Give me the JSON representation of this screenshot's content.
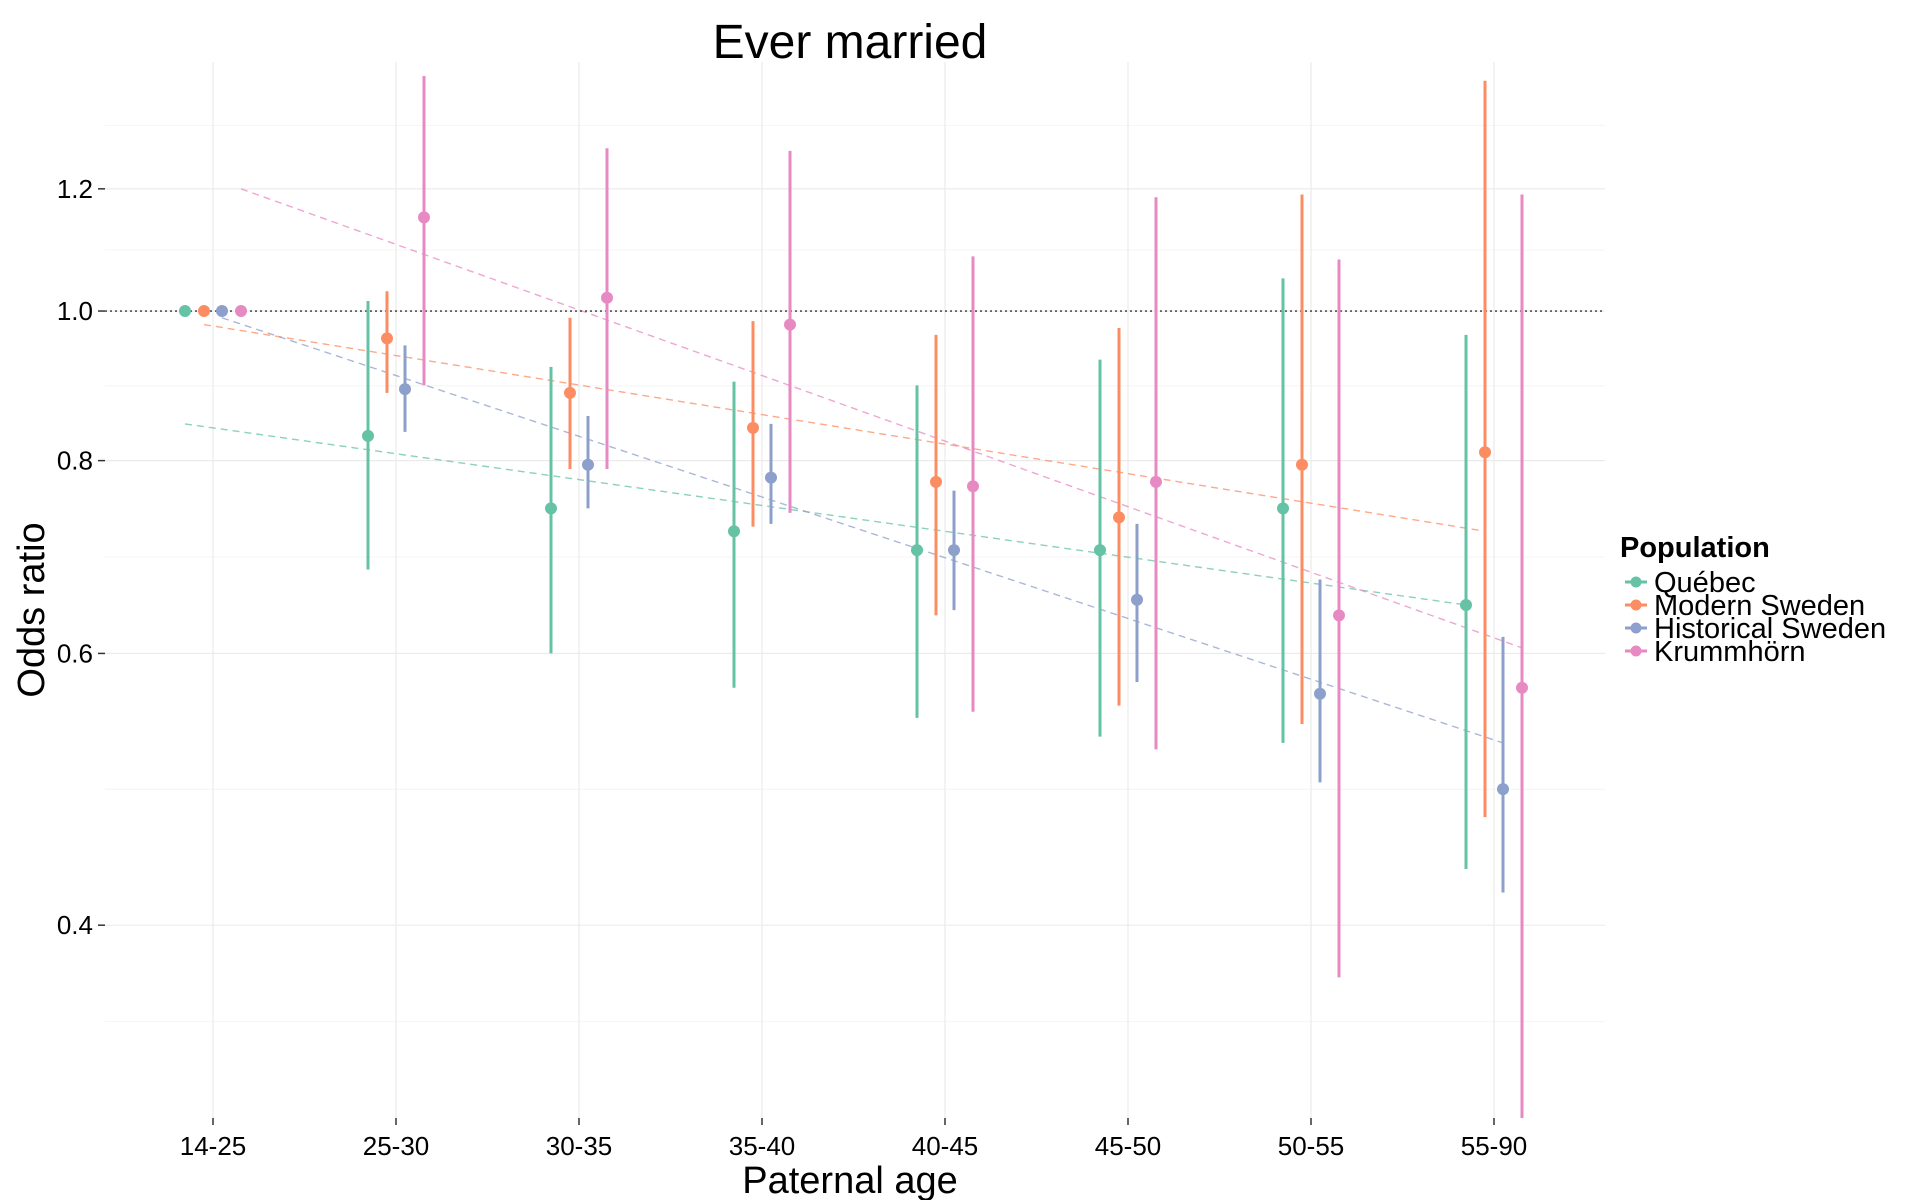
{
  "chart_data": {
    "type": "scatter",
    "title": "Ever married",
    "xlabel": "Paternal age",
    "ylabel": "Odds ratio",
    "y_scale": "log",
    "ylim": [
      0.3,
      1.45
    ],
    "y_ticks": [
      0.4,
      0.6,
      0.8,
      1.0,
      1.2
    ],
    "y_tick_labels": [
      "0.4",
      "0.6",
      "0.8",
      "1.0",
      "1.2"
    ],
    "reference_line": 1.0,
    "grid": true,
    "categories": [
      "14-25",
      "25-30",
      "30-35",
      "35-40",
      "40-45",
      "45-50",
      "50-55",
      "55-90"
    ],
    "legend": {
      "title": "Population",
      "position": "right"
    },
    "series": [
      {
        "name": "Québec",
        "color": "#66c2a5",
        "values": [
          1.0,
          0.83,
          0.745,
          0.72,
          0.7,
          0.7,
          0.745,
          0.645
        ],
        "lower": [
          1.0,
          0.68,
          0.6,
          0.57,
          0.545,
          0.53,
          0.525,
          0.435
        ],
        "upper": [
          1.0,
          1.015,
          0.92,
          0.9,
          0.895,
          0.93,
          1.05,
          0.965
        ],
        "trend": [
          0.845,
          0.645
        ]
      },
      {
        "name": "Modern Sweden",
        "color": "#fc8d62",
        "values": [
          1.0,
          0.96,
          0.885,
          0.84,
          0.775,
          0.735,
          0.795,
          0.81
        ],
        "lower": [
          1.0,
          0.885,
          0.79,
          0.725,
          0.635,
          0.555,
          0.54,
          0.47
        ],
        "upper": [
          1.0,
          1.03,
          0.99,
          0.985,
          0.965,
          0.975,
          1.19,
          1.41
        ],
        "trend": [
          0.98,
          0.72
        ]
      },
      {
        "name": "Historical Sweden",
        "color": "#8da0cb",
        "values": [
          1.0,
          0.89,
          0.795,
          0.78,
          0.7,
          0.65,
          0.565,
          0.49
        ],
        "lower": [
          1.0,
          0.835,
          0.745,
          0.728,
          0.64,
          0.575,
          0.495,
          0.42
        ],
        "upper": [
          1.0,
          0.95,
          0.855,
          0.845,
          0.765,
          0.728,
          0.67,
          0.615
        ],
        "trend": [
          0.99,
          0.525
        ]
      },
      {
        "name": "Krummhörn",
        "color": "#e78ac3",
        "values": [
          1.0,
          1.15,
          1.02,
          0.98,
          0.77,
          0.775,
          0.635,
          0.57
        ],
        "lower": [
          1.0,
          0.895,
          0.79,
          0.74,
          0.55,
          0.52,
          0.37,
          0.3
        ],
        "upper": [
          1.0,
          1.42,
          1.275,
          1.27,
          1.085,
          1.185,
          1.08,
          1.19
        ],
        "trend": [
          1.2,
          0.605
        ]
      }
    ]
  }
}
